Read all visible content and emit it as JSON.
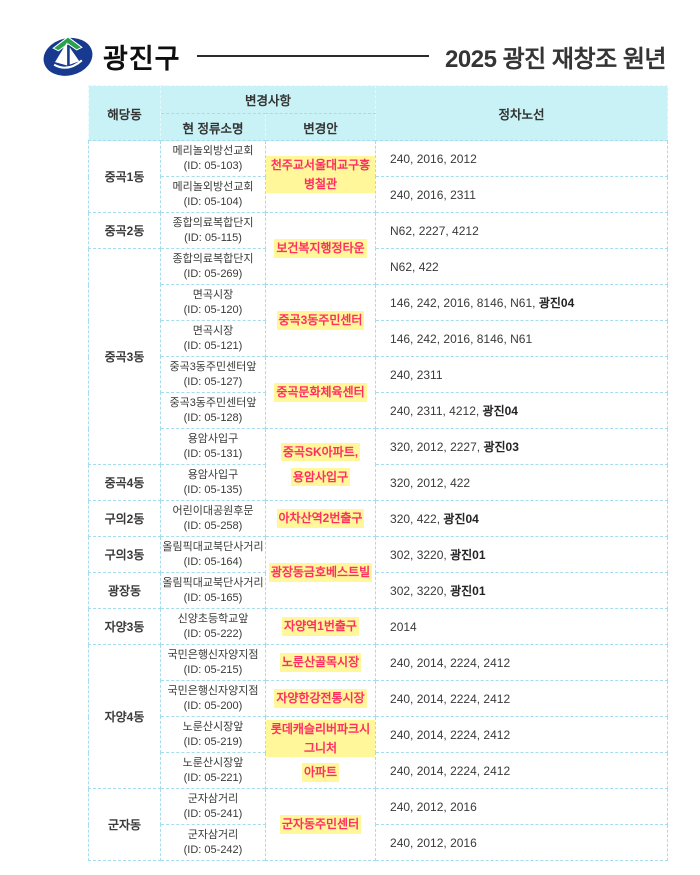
{
  "header": {
    "brand": "광진구",
    "title": "2025 광진 재창조 원년",
    "logo": "gwangjin-gu-emblem"
  },
  "colors": {
    "header_bg": "#c9f2f6",
    "table_border": "#a5dcf0",
    "highlight_bg": "#fff799",
    "change_text": "#ff2e63",
    "body_text": "#3a3a3a",
    "logo_navy": "#17398f",
    "logo_green": "#2aa14c"
  },
  "table": {
    "header": {
      "dong": "해당동",
      "change_group": "변경사항",
      "current_name": "현 정류소명",
      "proposal": "변경안",
      "routes": "정차노선"
    },
    "rows": [
      {
        "dong": "중곡1동",
        "dong_span": 2,
        "stop_name": "메리놀외방선교회",
        "stop_id": "(ID: 05-103)",
        "change": [
          "천주교서울대교구홍병철관"
        ],
        "change_span": 2,
        "routes": "240, 2016, 2012",
        "routes_bold": ""
      },
      {
        "stop_name": "메리놀외방선교회",
        "stop_id": "(ID: 05-104)",
        "routes": "240, 2016, 2311",
        "routes_bold": ""
      },
      {
        "dong": "중곡2동",
        "dong_span": 1,
        "stop_name": "종합의료복합단지",
        "stop_id": "(ID: 05-115)",
        "change": [
          "보건복지행정타운"
        ],
        "change_span": 2,
        "routes": "N62, 2227, 4212",
        "routes_bold": ""
      },
      {
        "dong": "중곡3동",
        "dong_span": 6,
        "stop_name": "종합의료복합단지",
        "stop_id": "(ID: 05-269)",
        "routes": "N62, 422",
        "routes_bold": ""
      },
      {
        "stop_name": "면곡시장",
        "stop_id": "(ID: 05-120)",
        "change": [
          "중곡3동주민센터"
        ],
        "change_span": 2,
        "routes": "146, 242, 2016, 8146, N61, ",
        "routes_bold": "광진04"
      },
      {
        "stop_name": "면곡시장",
        "stop_id": "(ID: 05-121)",
        "routes": "146, 242, 2016, 8146, N61",
        "routes_bold": ""
      },
      {
        "stop_name": "중곡3동주민센터앞",
        "stop_id": "(ID: 05-127)",
        "change": [
          "중곡문화체육센터"
        ],
        "change_span": 2,
        "routes": "240, 2311",
        "routes_bold": ""
      },
      {
        "stop_name": "중곡3동주민센터앞",
        "stop_id": "(ID: 05-128)",
        "routes": "240, 2311, 4212, ",
        "routes_bold": "광진04"
      },
      {
        "stop_name": "용암사입구",
        "stop_id": "(ID: 05-131)",
        "change": [
          "중곡SK아파트,",
          "용암사입구"
        ],
        "change_span": 2,
        "routes": "320, 2012, 2227, ",
        "routes_bold": "광진03"
      },
      {
        "dong": "중곡4동",
        "dong_span": 1,
        "stop_name": "용암사입구",
        "stop_id": "(ID: 05-135)",
        "routes": "320, 2012, 422",
        "routes_bold": ""
      },
      {
        "dong": "구의2동",
        "dong_span": 1,
        "stop_name": "어린이대공원후문",
        "stop_id": "(ID: 05-258)",
        "change": [
          "아차산역2번출구"
        ],
        "change_span": 1,
        "routes": "320, 422, ",
        "routes_bold": "광진04"
      },
      {
        "dong": "구의3동",
        "dong_span": 1,
        "stop_name": "올림픽대교북단사거리",
        "stop_id": "(ID: 05-164)",
        "change": [
          "광장동금호베스트빌"
        ],
        "change_span": 2,
        "routes": "302, 3220, ",
        "routes_bold": "광진01"
      },
      {
        "dong": "광장동",
        "dong_span": 1,
        "stop_name": "올림픽대교북단사거리",
        "stop_id": "(ID: 05-165)",
        "routes": "302, 3220, ",
        "routes_bold": "광진01"
      },
      {
        "dong": "자양3동",
        "dong_span": 1,
        "stop_name": "신양초등학교앞",
        "stop_id": "(ID: 05-222)",
        "change": [
          "자양역1번출구"
        ],
        "change_span": 1,
        "routes": "2014",
        "routes_bold": ""
      },
      {
        "dong": "자양4동",
        "dong_span": 4,
        "stop_name": "국민은행신자양지점",
        "stop_id": "(ID: 05-215)",
        "change": [
          "노룬산골목시장"
        ],
        "change_span": 1,
        "routes": "240, 2014, 2224, 2412",
        "routes_bold": ""
      },
      {
        "stop_name": "국민은행신자양지점",
        "stop_id": "(ID: 05-200)",
        "change": [
          "자양한강전통시장"
        ],
        "change_span": 1,
        "routes": "240, 2014, 2224, 2412",
        "routes_bold": ""
      },
      {
        "stop_name": "노룬산시장앞",
        "stop_id": "(ID: 05-219)",
        "change": [
          "롯데캐슬리버파크시그니처",
          "아파트"
        ],
        "change_span": 2,
        "routes": "240, 2014, 2224, 2412",
        "routes_bold": ""
      },
      {
        "stop_name": "노룬산시장앞",
        "stop_id": "(ID: 05-221)",
        "routes": "240, 2014, 2224, 2412",
        "routes_bold": ""
      },
      {
        "dong": "군자동",
        "dong_span": 2,
        "stop_name": "군자삼거리",
        "stop_id": "(ID: 05-241)",
        "change": [
          "군자동주민센터"
        ],
        "change_span": 2,
        "routes": "240, 2012, 2016",
        "routes_bold": ""
      },
      {
        "stop_name": "군자삼거리",
        "stop_id": "(ID: 05-242)",
        "routes": "240, 2012, 2016",
        "routes_bold": ""
      }
    ]
  }
}
